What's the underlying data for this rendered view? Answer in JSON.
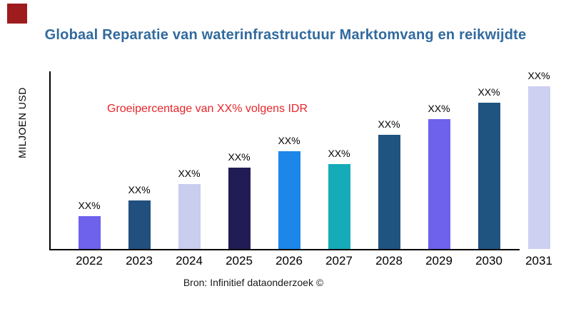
{
  "header": {
    "title": "Globaal Reparatie van waterinfrastructuur Marktomvang en reikwijdte",
    "title_color": "#316A9E",
    "brand_mark_color": "#9E1B1E"
  },
  "annotation": {
    "text": "Groeipercentage van XX% volgens IDR",
    "color": "#E8252A"
  },
  "footer": {
    "source_text": "Bron: Infinitief dataonderzoek ©"
  },
  "chart_data": {
    "type": "bar",
    "title": "Globaal Reparatie van waterinfrastructuur Marktomvang en reikwijdte",
    "xlabel": "",
    "ylabel": "MILJOEN USD",
    "categories": [
      "2022",
      "2023",
      "2024",
      "2025",
      "2026",
      "2027",
      "2028",
      "2029",
      "2030",
      "2031"
    ],
    "values": [
      20,
      30,
      40,
      50,
      60,
      52,
      70,
      80,
      90,
      100
    ],
    "values_note": "relative bar heights; actual figures masked on chart as XX%",
    "bar_value_labels": [
      "XX%",
      "XX%",
      "XX%",
      "XX%",
      "XX%",
      "XX%",
      "XX%",
      "XX%",
      "XX%",
      "XX%"
    ],
    "bar_colors": [
      "#6E61EC",
      "#21507E",
      "#C9CDEE",
      "#221C55",
      "#1C87E8",
      "#16ABB9",
      "#1F5480",
      "#6E61EC",
      "#1F5480",
      "#CDD0F0"
    ],
    "annotation": "Groeipercentage van XX% volgens IDR",
    "ylim": [
      0,
      110
    ],
    "grid": false,
    "legend": false,
    "axis_color": "#000000"
  }
}
